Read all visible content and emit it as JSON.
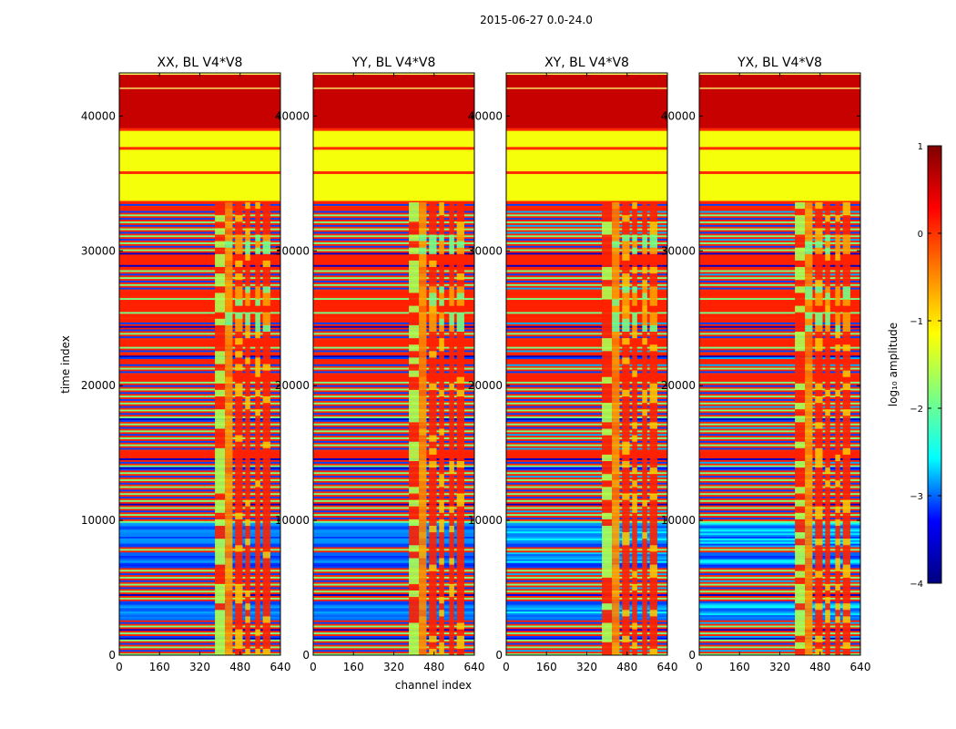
{
  "figure": {
    "suptitle": "2015-06-27 0.0-24.0"
  },
  "chart_data": {
    "type": "heatmap",
    "description_of_values": "log10 visibility amplitude per (time index, channel index) for baseline V4*V8",
    "panels": [
      {
        "title": "XX, BL V4*V8"
      },
      {
        "title": "YY, BL V4*V8"
      },
      {
        "title": "XY, BL V4*V8"
      },
      {
        "title": "YX, BL V4*V8"
      }
    ],
    "xlabel": "channel index",
    "ylabel": "time index",
    "xlim": [
      0,
      640
    ],
    "ylim": [
      0,
      43200
    ],
    "x_ticks": [
      0,
      160,
      320,
      480,
      640
    ],
    "x_tick_labels": [
      "0",
      "160",
      "320",
      "480",
      "640"
    ],
    "y_ticks": [
      0,
      10000,
      20000,
      30000,
      40000
    ],
    "y_tick_labels": [
      "0",
      "10000",
      "20000",
      "30000",
      "40000"
    ],
    "colorbar": {
      "label": "log₁₀ amplitude",
      "range": [
        -4,
        1
      ],
      "ticks": [
        1,
        0,
        -1,
        -2,
        -3,
        -4
      ],
      "tick_labels": [
        "1",
        "0",
        "−1",
        "−2",
        "−3",
        "−4"
      ],
      "colormap": "jet",
      "stops": [
        "#00007f",
        "#0000ff",
        "#00ffff",
        "#7fff7f",
        "#ffff00",
        "#ff7f00",
        "#ff0000",
        "#7f0000"
      ]
    },
    "time_regions": [
      {
        "t0": 42000,
        "t1": 43200,
        "value": 0.6
      },
      {
        "t0": 39000,
        "t1": 42000,
        "value": 0.6
      },
      {
        "t0": 37600,
        "t1": 39000,
        "value": -1.2
      },
      {
        "t0": 35800,
        "t1": 37600,
        "value": -1.2
      },
      {
        "t0": 33600,
        "t1": 35800,
        "value": -1.2
      }
    ],
    "bright_channel_bands": [
      [
        380,
        420
      ],
      [
        420,
        450
      ],
      [
        460,
        490
      ],
      [
        500,
        520
      ],
      [
        540,
        560
      ],
      [
        570,
        600
      ]
    ],
    "blue_time_blocks": [
      [
        23800,
        25500
      ],
      [
        26000,
        27200
      ],
      [
        29700,
        31000
      ]
    ]
  }
}
